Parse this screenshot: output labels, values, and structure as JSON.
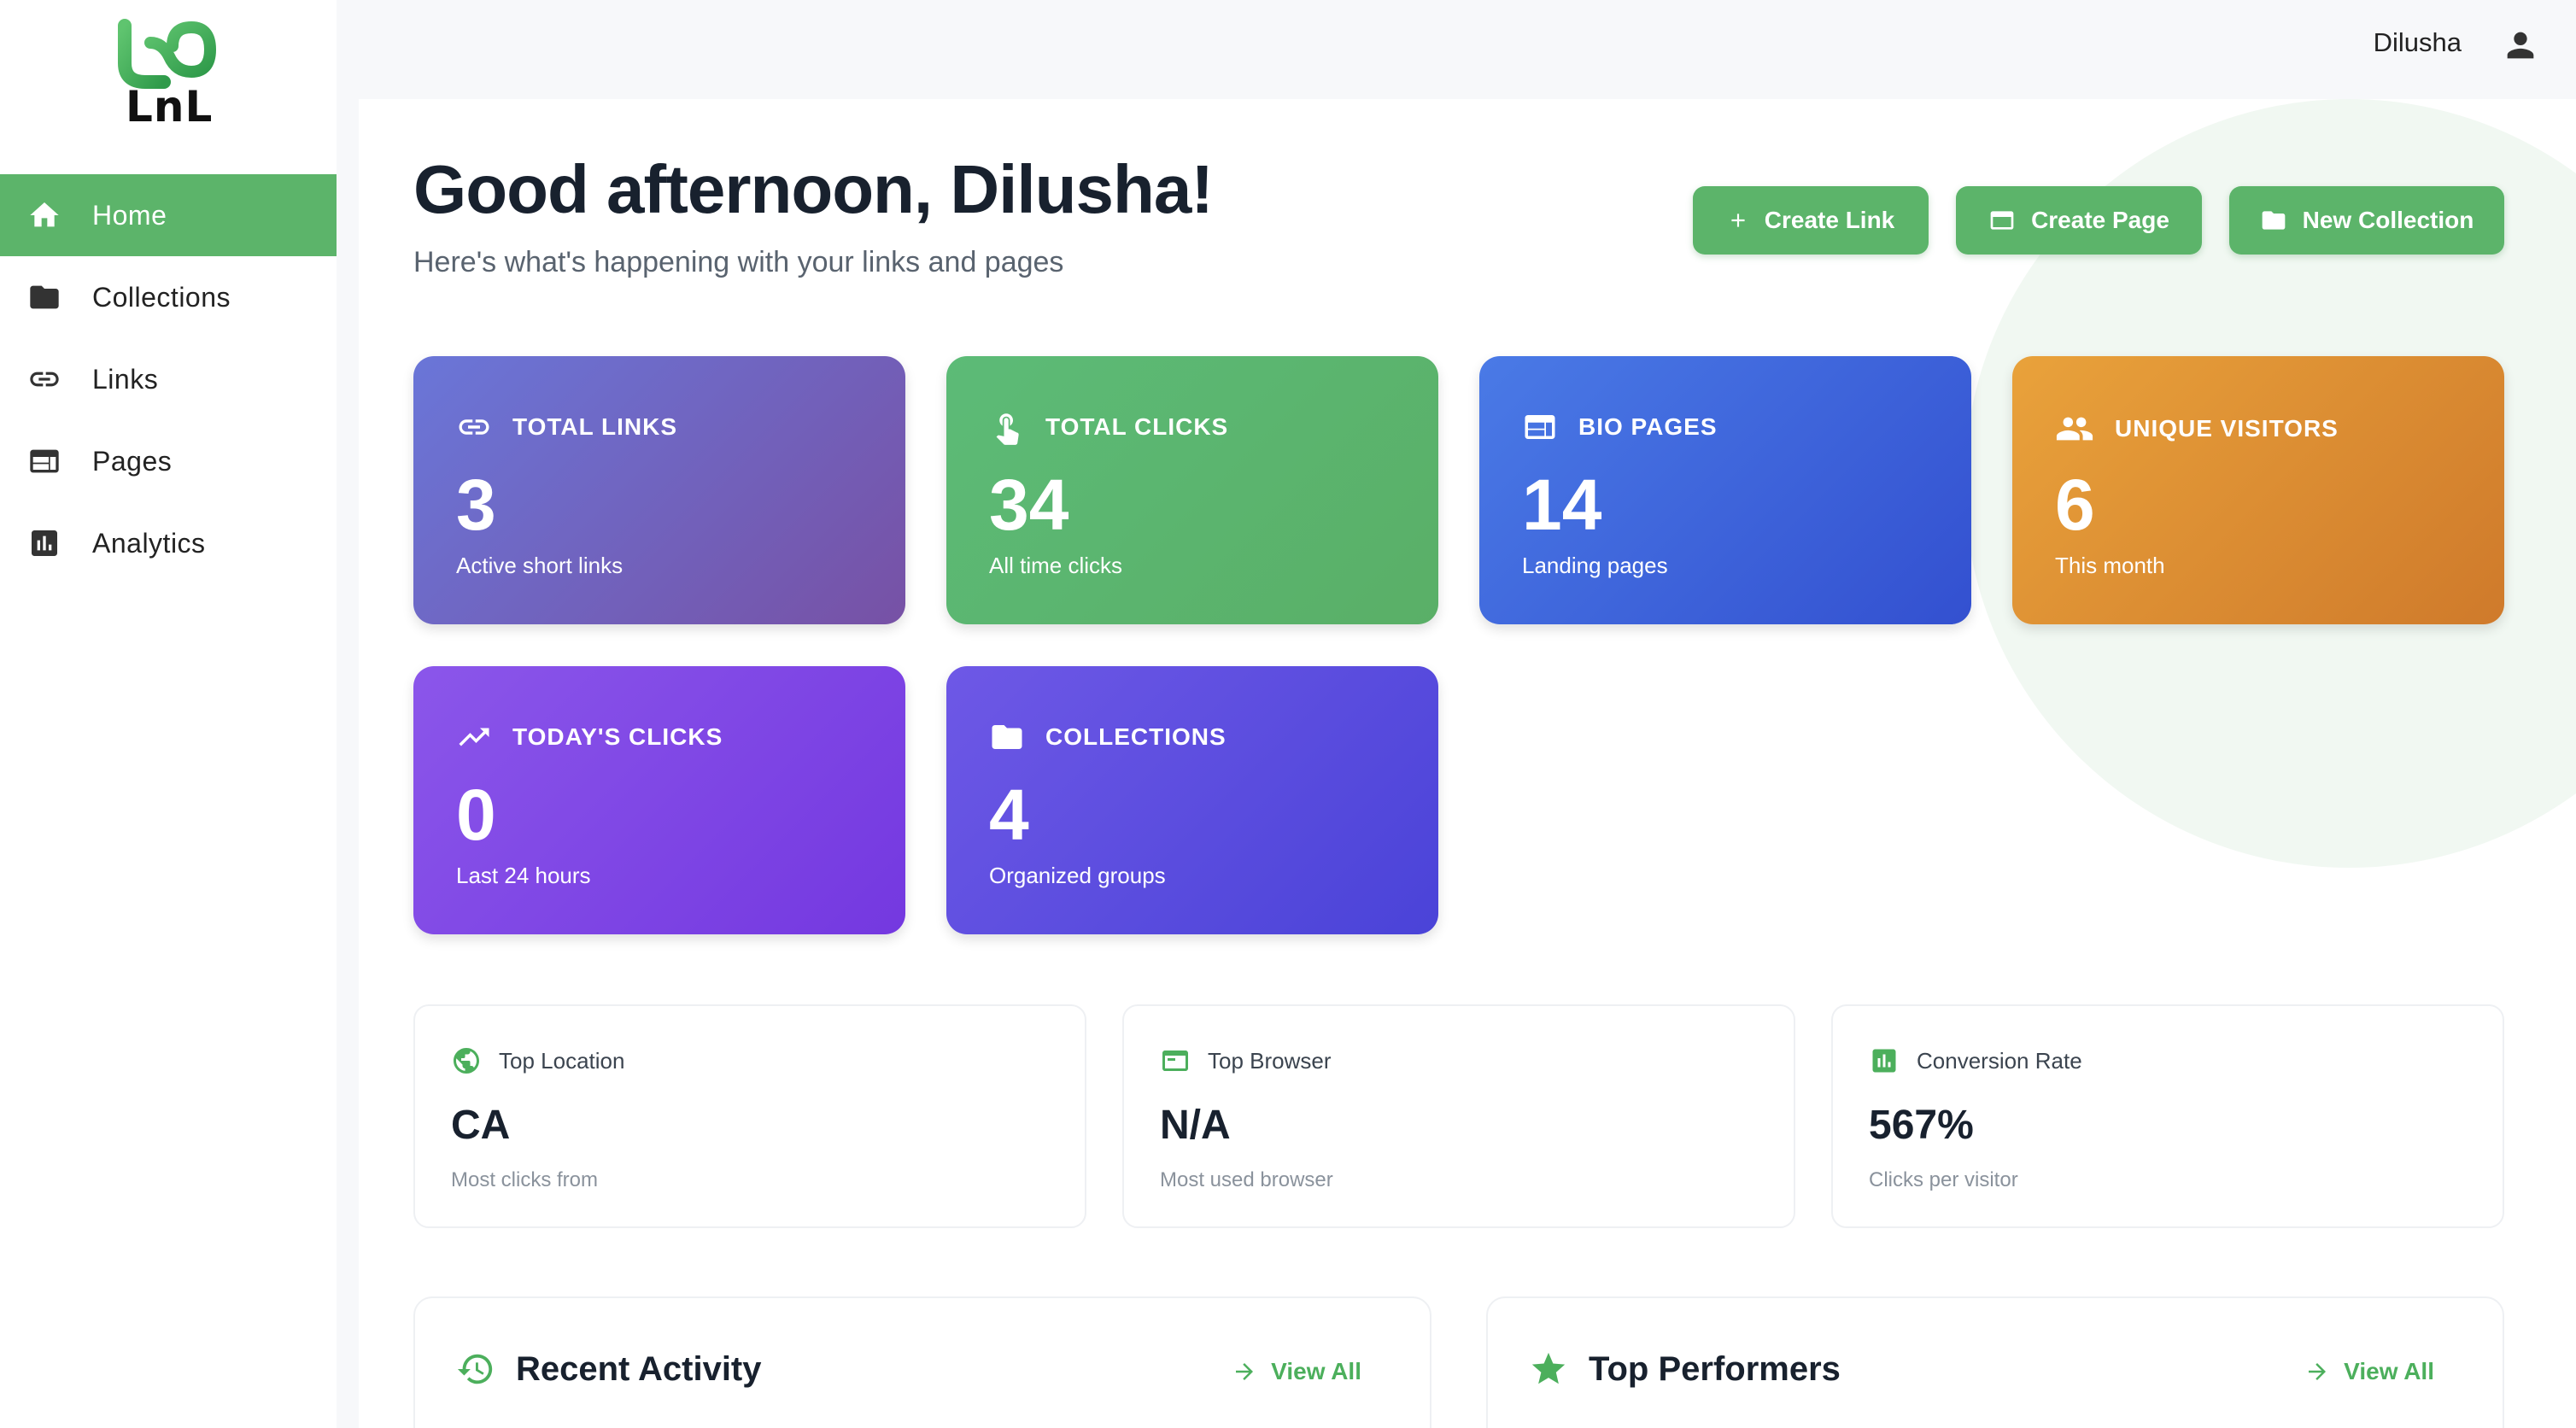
{
  "app": {
    "logo_text": "LnL"
  },
  "sidebar": {
    "items": [
      {
        "label": "Home",
        "icon": "home-icon",
        "active": true
      },
      {
        "label": "Collections",
        "icon": "folder-icon",
        "active": false
      },
      {
        "label": "Links",
        "icon": "link-icon",
        "active": false
      },
      {
        "label": "Pages",
        "icon": "web-page-icon",
        "active": false
      },
      {
        "label": "Analytics",
        "icon": "analytics-icon",
        "active": false
      }
    ]
  },
  "header": {
    "user_name": "Dilusha"
  },
  "main": {
    "greeting": "Good afternoon, Dilusha!",
    "subtitle": "Here's what's happening with your links and pages",
    "actions": {
      "create_link": "Create Link",
      "create_page": "Create Page",
      "new_collection": "New Collection"
    },
    "stats": {
      "total_links": {
        "title": "TOTAL LINKS",
        "value": "3",
        "sub": "Active short links"
      },
      "total_clicks": {
        "title": "TOTAL CLICKS",
        "value": "34",
        "sub": "All time clicks"
      },
      "bio_pages": {
        "title": "BIO PAGES",
        "value": "14",
        "sub": "Landing pages"
      },
      "unique_visitors": {
        "title": "UNIQUE VISITORS",
        "value": "6",
        "sub": "This month"
      },
      "todays_clicks": {
        "title": "TODAY'S CLICKS",
        "value": "0",
        "sub": "Last 24 hours"
      },
      "collections": {
        "title": "COLLECTIONS",
        "value": "4",
        "sub": "Organized groups"
      }
    },
    "info": {
      "top_location": {
        "title": "Top Location",
        "value": "CA",
        "sub": "Most clicks from"
      },
      "top_browser": {
        "title": "Top Browser",
        "value": "N/A",
        "sub": "Most used browser"
      },
      "conversion_rate": {
        "title": "Conversion Rate",
        "value": "567%",
        "sub": "Clicks per visitor"
      }
    },
    "panels": {
      "recent_activity": {
        "title": "Recent Activity",
        "view_all": "View All"
      },
      "top_performers": {
        "title": "Top Performers",
        "view_all": "View All"
      }
    }
  },
  "colors": {
    "accent": "#5cb46a",
    "text_dark": "#18212e"
  }
}
